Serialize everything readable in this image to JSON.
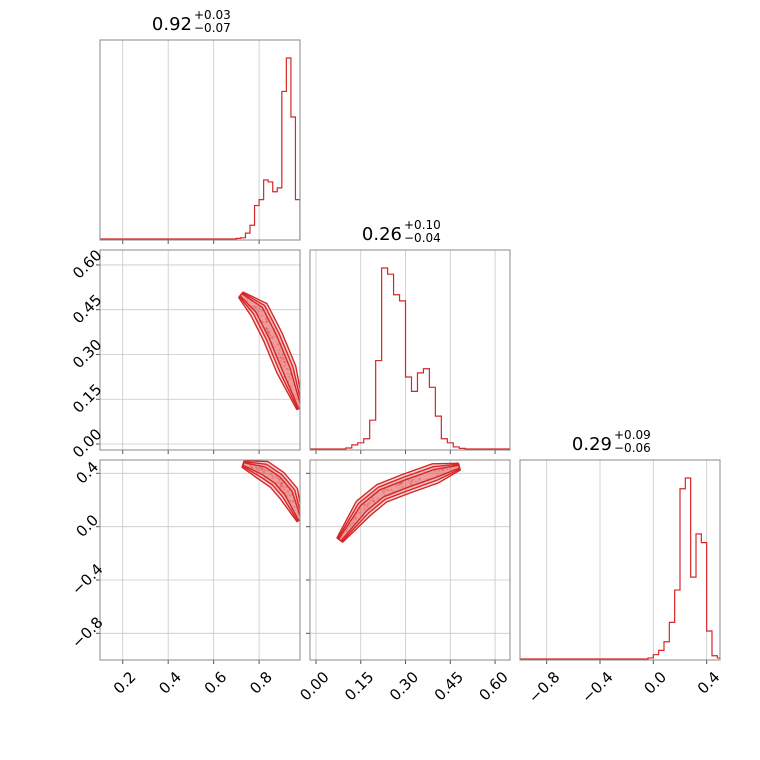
{
  "chart_data": {
    "type": "corner",
    "color": "#d62728",
    "grid": true,
    "titles": [
      {
        "value": "0.92",
        "plus": "+0.03",
        "minus": "−0.07"
      },
      {
        "value": "0.26",
        "plus": "+0.10",
        "minus": "−0.04"
      },
      {
        "value": "0.29",
        "plus": "+0.09",
        "minus": "−0.06"
      }
    ],
    "parameters": [
      {
        "range": [
          0.1,
          0.98
        ],
        "ticks": [
          0.2,
          0.4,
          0.6,
          0.8
        ],
        "tick_labels": [
          "0.2",
          "0.4",
          "0.6",
          "0.8"
        ],
        "hist": {
          "edges": [
            0.7,
            0.72,
            0.74,
            0.76,
            0.78,
            0.8,
            0.82,
            0.84,
            0.86,
            0.88,
            0.9,
            0.92,
            0.94,
            0.96,
            0.98
          ],
          "counts": [
            0.3,
            0.6,
            3,
            7,
            17,
            20,
            30,
            29,
            24,
            26,
            75,
            92,
            62,
            20
          ]
        }
      },
      {
        "range": [
          -0.02,
          0.65
        ],
        "ticks": [
          0.0,
          0.15,
          0.3,
          0.45,
          0.6
        ],
        "tick_labels": [
          "0.00",
          "0.15",
          "0.30",
          "0.45",
          "0.60"
        ],
        "hist": {
          "edges": [
            0.1,
            0.12,
            0.14,
            0.16,
            0.18,
            0.2,
            0.22,
            0.24,
            0.26,
            0.28,
            0.3,
            0.32,
            0.34,
            0.36,
            0.38,
            0.4,
            0.42,
            0.44,
            0.46,
            0.48,
            0.5
          ],
          "counts": [
            0.5,
            2,
            3,
            5,
            14,
            43,
            88,
            85,
            75,
            72,
            35,
            28,
            37,
            39,
            30,
            16,
            5,
            3,
            1,
            0.3
          ]
        }
      },
      {
        "range": [
          -1.0,
          0.5
        ],
        "ticks": [
          -0.8,
          -0.4,
          0.0,
          0.4
        ],
        "tick_labels": [
          "−0.8",
          "−0.4",
          "0.0",
          "0.4"
        ],
        "hist": {
          "edges": [
            -0.04,
            0.0,
            0.04,
            0.08,
            0.12,
            0.16,
            0.2,
            0.24,
            0.28,
            0.32,
            0.36,
            0.4,
            0.44,
            0.48,
            0.5
          ],
          "counts": [
            0.5,
            2,
            4,
            8,
            17,
            32,
            79,
            84,
            38,
            58,
            54,
            13,
            1.5,
            0.5
          ]
        }
      }
    ],
    "y_tick_labels_rows": [
      {
        "row": 1,
        "ticks": [
          0.0,
          0.15,
          0.3,
          0.45,
          0.6
        ],
        "labels": [
          "0.00",
          "0.15",
          "0.30",
          "0.45",
          "0.60"
        ]
      },
      {
        "row": 2,
        "ticks": [
          -0.8,
          -0.4,
          0.0,
          0.4
        ],
        "labels": [
          "−0.8",
          "−0.4",
          "0.0",
          "0.4"
        ]
      }
    ]
  }
}
